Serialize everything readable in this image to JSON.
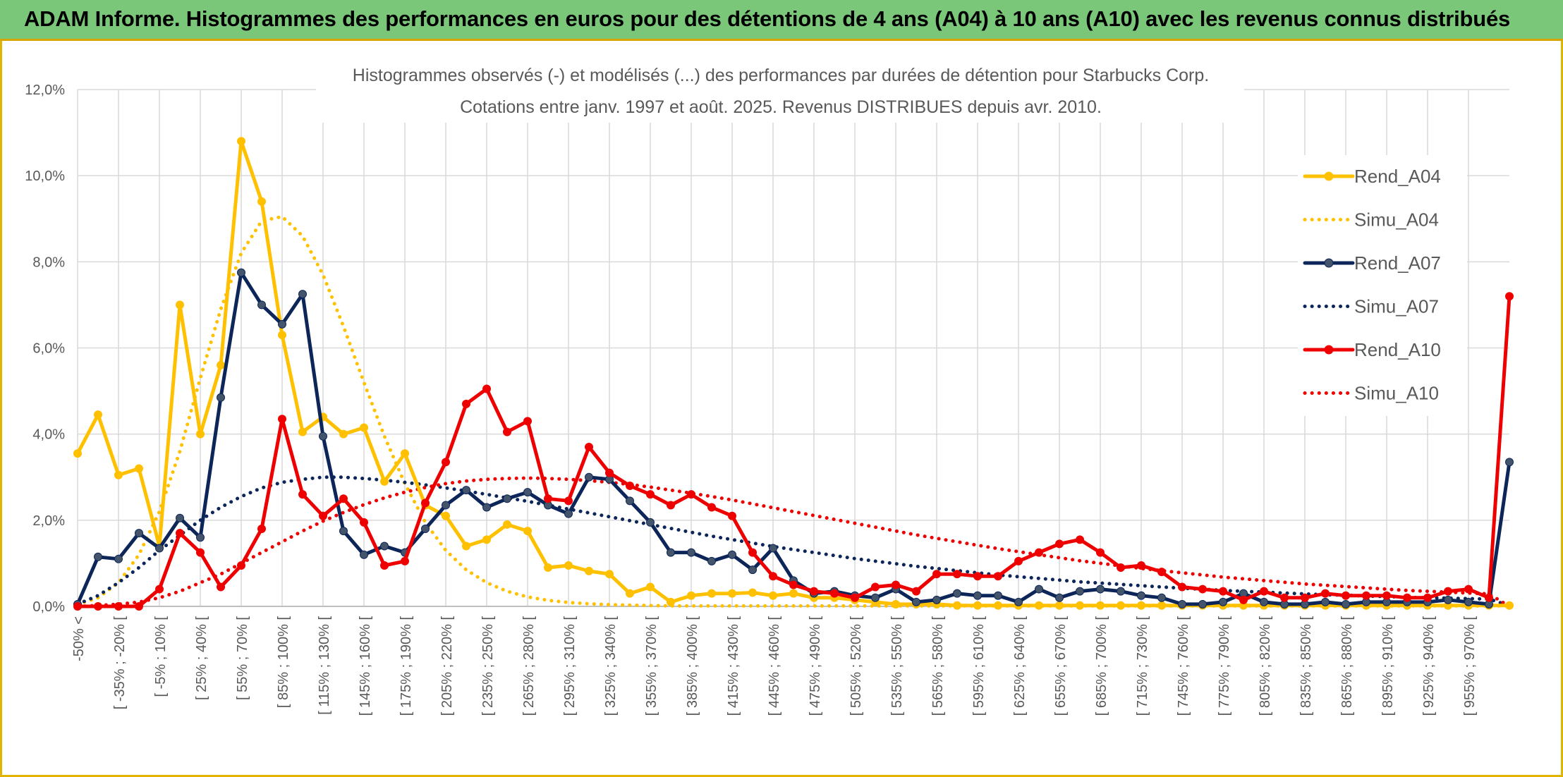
{
  "header": {
    "title": "ADAM Informe. Histogrammes des performances en euros pour des détentions de 4 ans (A04) à 10 ans (A10) avec les revenus connus distribués"
  },
  "chart_data": {
    "type": "line",
    "title": "Histogrammes observés (-) et modélisés (...) des performances par durées de détention pour Starbucks Corp.",
    "subtitle": "Cotations entre janv. 1997 et août. 2025. Revenus DISTRIBUES depuis avr. 2010.",
    "y_ticks": [
      "0,0%",
      "2,0%",
      "4,0%",
      "6,0%",
      "8,0%",
      "10,0%",
      "12,0%"
    ],
    "ylim": [
      0,
      12
    ],
    "grid": true,
    "legend_position": "right",
    "x_labels": [
      "-50% <",
      "[ -35% ; -20% [",
      "[ -5% ; 10% [",
      "[ 25% ; 40% [",
      "[ 55% ; 70% [",
      "[ 85% ; 100% [",
      "[ 115% ; 130% [",
      "[ 145% ; 160% [",
      "[ 175% ; 190% [",
      "[ 205% ; 220% [",
      "[ 235% ; 250% [",
      "[ 265% ; 280% [",
      "[ 295% ; 310% [",
      "[ 325% ; 340% [",
      "[ 355% ; 370% [",
      "[ 385% ; 400% [",
      "[ 415% ; 430% [",
      "[ 445% ; 460% [",
      "[ 475% ; 490% [",
      "[ 505% ; 520% [",
      "[ 535% ; 550% [",
      "[ 565% ; 580% [",
      "[ 595% ; 610% [",
      "[ 625% ; 640% [",
      "[ 655% ; 670% [",
      "[ 685% ; 700% [",
      "[ 715% ; 730% [",
      "[ 745% ; 760% [",
      "[ 775% ; 790% [",
      "[ 805% ; 820% [",
      "[ 835% ; 850% [",
      "[ 865% ; 880% [",
      "[ 895% ; 910% [",
      "[ 925% ; 940% [",
      "[ 955% ; 970% ["
    ],
    "series": [
      {
        "name": "Rend_A04",
        "style": "solid",
        "color": "#ffc000",
        "markers": true,
        "values": [
          3.55,
          4.45,
          3.05,
          3.2,
          1.4,
          7.0,
          4.0,
          5.6,
          10.8,
          9.4,
          6.3,
          4.05,
          4.4,
          4.0,
          4.15,
          2.9,
          3.55,
          2.35,
          2.1,
          1.4,
          1.55,
          1.9,
          1.75,
          0.9,
          0.95,
          0.82,
          0.75,
          0.3,
          0.45,
          0.1,
          0.25,
          0.3,
          0.3,
          0.32,
          0.25,
          0.3,
          0.2,
          0.2,
          0.15,
          0.1,
          0.05,
          0.05,
          0.05,
          0.02,
          0.02,
          0.02,
          0.02,
          0.02,
          0.02,
          0.02,
          0.02,
          0.02,
          0.02,
          0.02,
          0.02,
          0.02,
          0.02,
          0.02,
          0.02,
          0.02,
          0.02,
          0.02,
          0.02,
          0.02,
          0.02,
          0.02,
          0.02,
          0.02,
          0.02,
          0.02,
          0.02,
          0.02
        ]
      },
      {
        "name": "Simu_A04",
        "style": "dotted",
        "color": "#ffc000",
        "markers": false,
        "values": [
          0.05,
          0.2,
          0.55,
          1.2,
          2.2,
          3.6,
          5.3,
          6.9,
          8.2,
          8.95,
          9.05,
          8.6,
          7.7,
          6.5,
          5.2,
          3.95,
          2.85,
          1.95,
          1.3,
          0.85,
          0.55,
          0.35,
          0.22,
          0.14,
          0.09,
          0.06,
          0.04,
          0.03,
          0.02,
          0.01,
          0.01,
          0.01,
          0.01,
          0.01,
          0.01,
          0.01,
          0.01,
          0.01,
          0.01,
          0.01,
          0.01,
          0.01,
          0.01,
          0.01,
          0.01,
          0.01,
          0.01,
          0.01,
          0.01,
          0.01,
          0.01,
          0.01,
          0.01,
          0.01,
          0.01,
          0.01,
          0.01,
          0.01,
          0.01,
          0.01,
          0.01,
          0.01,
          0.01,
          0.01,
          0.01,
          0.01,
          0.01,
          0.01,
          0.01,
          0.01,
          0.01,
          0.01
        ]
      },
      {
        "name": "Rend_A07",
        "style": "solid",
        "color": "#0d2659",
        "markers": true,
        "values": [
          0.05,
          1.15,
          1.1,
          1.7,
          1.35,
          2.05,
          1.6,
          4.85,
          7.75,
          7.0,
          6.55,
          7.25,
          3.95,
          1.75,
          1.2,
          1.4,
          1.25,
          1.8,
          2.35,
          2.7,
          2.3,
          2.5,
          2.65,
          2.35,
          2.15,
          3.0,
          2.95,
          2.45,
          1.95,
          1.25,
          1.25,
          1.05,
          1.2,
          0.85,
          1.35,
          0.6,
          0.3,
          0.35,
          0.25,
          0.2,
          0.4,
          0.1,
          0.15,
          0.3,
          0.25,
          0.25,
          0.1,
          0.4,
          0.2,
          0.35,
          0.4,
          0.35,
          0.25,
          0.2,
          0.05,
          0.05,
          0.1,
          0.3,
          0.1,
          0.05,
          0.05,
          0.1,
          0.05,
          0.1,
          0.1,
          0.1,
          0.1,
          0.15,
          0.1,
          0.05,
          3.35
        ]
      },
      {
        "name": "Simu_A07",
        "style": "dotted",
        "color": "#0d2659",
        "markers": false,
        "values": [
          0.05,
          0.25,
          0.55,
          0.9,
          1.3,
          1.65,
          2.0,
          2.3,
          2.55,
          2.75,
          2.88,
          2.95,
          3.0,
          3.0,
          2.97,
          2.93,
          2.88,
          2.82,
          2.75,
          2.68,
          2.6,
          2.52,
          2.44,
          2.35,
          2.26,
          2.17,
          2.08,
          1.99,
          1.9,
          1.81,
          1.72,
          1.63,
          1.55,
          1.47,
          1.39,
          1.32,
          1.25,
          1.18,
          1.11,
          1.05,
          0.99,
          0.93,
          0.88,
          0.83,
          0.78,
          0.73,
          0.69,
          0.65,
          0.61,
          0.57,
          0.54,
          0.51,
          0.48,
          0.45,
          0.42,
          0.4,
          0.37,
          0.35,
          0.33,
          0.31,
          0.29,
          0.27,
          0.26,
          0.24,
          0.23,
          0.21,
          0.2,
          0.19,
          0.18,
          0.17,
          0.02
        ]
      },
      {
        "name": "Rend_A10",
        "style": "solid",
        "color": "#ee0000",
        "markers": true,
        "values": [
          0.0,
          0.0,
          0.0,
          0.0,
          0.4,
          1.7,
          1.25,
          0.45,
          0.95,
          1.8,
          4.35,
          2.6,
          2.1,
          2.5,
          1.95,
          0.95,
          1.05,
          2.4,
          3.35,
          4.7,
          5.05,
          4.05,
          4.3,
          2.5,
          2.45,
          3.7,
          3.1,
          2.8,
          2.6,
          2.35,
          2.6,
          2.3,
          2.1,
          1.25,
          0.7,
          0.5,
          0.35,
          0.3,
          0.2,
          0.45,
          0.5,
          0.35,
          0.75,
          0.75,
          0.7,
          0.7,
          1.05,
          1.25,
          1.45,
          1.55,
          1.25,
          0.9,
          0.95,
          0.8,
          0.45,
          0.4,
          0.35,
          0.15,
          0.35,
          0.2,
          0.2,
          0.3,
          0.25,
          0.25,
          0.25,
          0.2,
          0.2,
          0.35,
          0.4,
          0.2,
          7.2
        ]
      },
      {
        "name": "Simu_A10",
        "style": "dotted",
        "color": "#ee0000",
        "markers": false,
        "values": [
          0.0,
          0.02,
          0.05,
          0.1,
          0.2,
          0.35,
          0.55,
          0.75,
          1.0,
          1.25,
          1.5,
          1.75,
          1.98,
          2.18,
          2.36,
          2.52,
          2.65,
          2.76,
          2.85,
          2.91,
          2.95,
          2.97,
          2.98,
          2.97,
          2.95,
          2.92,
          2.88,
          2.83,
          2.77,
          2.7,
          2.63,
          2.55,
          2.47,
          2.38,
          2.29,
          2.2,
          2.11,
          2.02,
          1.93,
          1.84,
          1.75,
          1.66,
          1.58,
          1.5,
          1.42,
          1.34,
          1.27,
          1.2,
          1.13,
          1.06,
          1.0,
          0.94,
          0.88,
          0.83,
          0.78,
          0.73,
          0.68,
          0.64,
          0.6,
          0.56,
          0.52,
          0.49,
          0.46,
          0.43,
          0.4,
          0.37,
          0.35,
          0.33,
          0.31,
          0.29,
          0.0
        ]
      }
    ]
  }
}
